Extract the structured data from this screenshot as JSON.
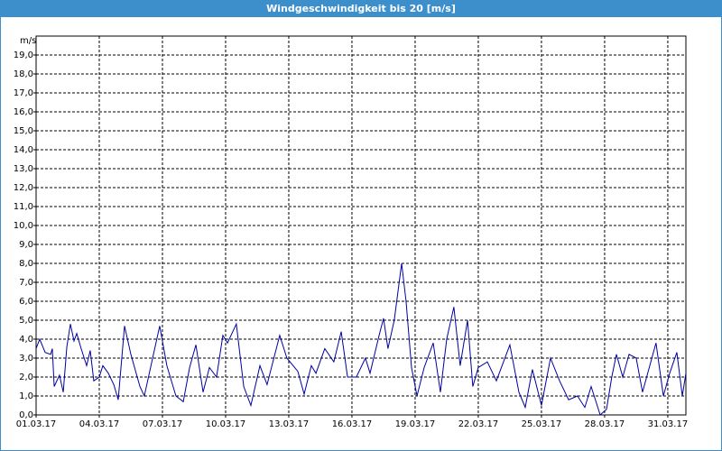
{
  "chart_data": {
    "type": "line",
    "title": "Windgeschwindigkeit bis 20 [m/s]",
    "y_label": "m/s",
    "color": "#0000a0",
    "grid": true,
    "xlim": [
      0,
      30.86
    ],
    "xticks": [
      {
        "value": 0,
        "label": "01.03.17"
      },
      {
        "value": 3,
        "label": "04.03.17"
      },
      {
        "value": 6,
        "label": "07.03.17"
      },
      {
        "value": 9,
        "label": "10.03.17"
      },
      {
        "value": 12,
        "label": "13.03.17"
      },
      {
        "value": 15,
        "label": "16.03.17"
      },
      {
        "value": 18,
        "label": "19.03.17"
      },
      {
        "value": 21,
        "label": "22.03.17"
      },
      {
        "value": 24,
        "label": "25.03.17"
      },
      {
        "value": 27,
        "label": "28.03.17"
      },
      {
        "value": 30,
        "label": "31.03.17"
      }
    ],
    "ylim": [
      0,
      20
    ],
    "yticks": [
      {
        "value": 0,
        "label": "0,0"
      },
      {
        "value": 1,
        "label": "1,0"
      },
      {
        "value": 2,
        "label": "2,0"
      },
      {
        "value": 3,
        "label": "3,0"
      },
      {
        "value": 4,
        "label": "4,0"
      },
      {
        "value": 5,
        "label": "5,0"
      },
      {
        "value": 6,
        "label": "6,0"
      },
      {
        "value": 7,
        "label": "7,0"
      },
      {
        "value": 8,
        "label": "8,0"
      },
      {
        "value": 9,
        "label": "9,0"
      },
      {
        "value": 10,
        "label": "10,0"
      },
      {
        "value": 11,
        "label": "11,0"
      },
      {
        "value": 12,
        "label": "12,0"
      },
      {
        "value": 13,
        "label": "13,0"
      },
      {
        "value": 14,
        "label": "14,0"
      },
      {
        "value": 15,
        "label": "15,0"
      },
      {
        "value": 16,
        "label": "16,0"
      },
      {
        "value": 17,
        "label": "17,0"
      },
      {
        "value": 18,
        "label": "18,0"
      },
      {
        "value": 19,
        "label": "19,0"
      }
    ],
    "x": [
      0,
      0.17,
      0.43,
      0.69,
      0.77,
      0.86,
      1.11,
      1.29,
      1.46,
      1.63,
      1.8,
      1.93,
      2.14,
      2.4,
      2.57,
      2.74,
      3.0,
      3.17,
      3.43,
      3.69,
      3.9,
      4.2,
      4.5,
      4.93,
      5.14,
      5.87,
      6.21,
      6.64,
      6.99,
      7.29,
      7.59,
      7.93,
      8.23,
      8.57,
      8.87,
      9.09,
      9.51,
      9.86,
      10.2,
      10.63,
      10.97,
      11.57,
      11.91,
      12.43,
      12.73,
      13.07,
      13.29,
      13.71,
      14.14,
      14.49,
      14.79,
      15.21,
      15.64,
      15.86,
      16.29,
      16.5,
      16.71,
      17.01,
      17.36,
      17.57,
      17.83,
      18.09,
      18.43,
      18.86,
      19.2,
      19.5,
      19.84,
      20.14,
      20.49,
      20.74,
      21.0,
      21.43,
      21.86,
      22.5,
      22.93,
      23.23,
      23.57,
      24.0,
      24.43,
      24.86,
      25.29,
      25.71,
      26.06,
      26.36,
      26.79,
      27.09,
      27.34,
      27.56,
      27.86,
      28.16,
      28.5,
      28.8,
      29.44,
      29.79,
      30.09,
      30.43,
      30.69,
      30.86
    ],
    "values": [
      3.5,
      4.0,
      3.3,
      3.2,
      3.5,
      1.5,
      2.1,
      1.2,
      3.6,
      4.8,
      3.9,
      4.3,
      3.5,
      2.6,
      3.4,
      1.8,
      2.0,
      2.6,
      2.2,
      1.6,
      0.8,
      4.7,
      3.2,
      1.5,
      1.0,
      4.7,
      2.6,
      1.0,
      0.7,
      2.5,
      3.7,
      1.2,
      2.5,
      2.0,
      4.2,
      3.8,
      4.8,
      1.5,
      0.5,
      2.6,
      1.6,
      4.2,
      3.0,
      2.3,
      1.1,
      2.6,
      2.2,
      3.5,
      2.8,
      4.4,
      2.0,
      2.0,
      3.0,
      2.2,
      4.2,
      5.1,
      3.5,
      5.0,
      8.0,
      6.0,
      2.5,
      1.0,
      2.5,
      3.8,
      1.2,
      4.0,
      5.7,
      2.6,
      5.0,
      1.5,
      2.5,
      2.8,
      1.8,
      3.7,
      1.2,
      0.4,
      2.4,
      0.5,
      3.0,
      1.8,
      0.8,
      1.0,
      0.4,
      1.5,
      0.0,
      0.3,
      2.0,
      3.2,
      2.0,
      3.2,
      3.0,
      1.2,
      3.8,
      1.0,
      2.2,
      3.3,
      1.0,
      2.2
    ]
  }
}
